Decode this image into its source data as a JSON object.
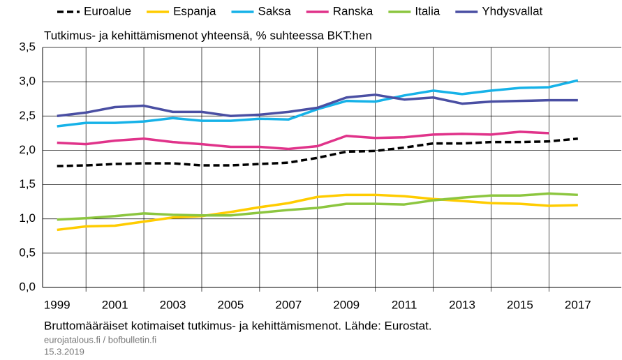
{
  "chart_data": {
    "type": "line",
    "subtitle": "Tutkimus- ja kehittämismenot yhteensä, % suhteessa BKT:hen",
    "note": "Bruttomääräiset kotimaiset tutkimus- ja kehittämismenot. Lähde: Eurostat.",
    "source": "eurojatalous.fi / bofbulletin.fi",
    "date": "15.3.2019",
    "x": [
      1999,
      2000,
      2001,
      2002,
      2003,
      2004,
      2005,
      2006,
      2007,
      2008,
      2009,
      2010,
      2011,
      2012,
      2013,
      2014,
      2015,
      2016,
      2017
    ],
    "xlim": [
      1998.5,
      2018.5
    ],
    "xticks": [
      1999,
      2001,
      2003,
      2005,
      2007,
      2009,
      2011,
      2013,
      2015,
      2017
    ],
    "ylim": [
      0,
      3.5
    ],
    "yticks": [
      {
        "value": 0,
        "label": "0,0"
      },
      {
        "value": 0.5,
        "label": "0,5"
      },
      {
        "value": 1,
        "label": "1,0"
      },
      {
        "value": 1.5,
        "label": "1,5"
      },
      {
        "value": 2,
        "label": "2,0"
      },
      {
        "value": 2.5,
        "label": "2,5"
      },
      {
        "value": 3,
        "label": "3,0"
      },
      {
        "value": 3.5,
        "label": "3,5"
      }
    ],
    "grid": true,
    "series": [
      {
        "name": "Euroalue",
        "color": "#000000",
        "dashed": true,
        "values": [
          1.77,
          1.78,
          1.8,
          1.81,
          1.81,
          1.78,
          1.78,
          1.8,
          1.82,
          1.89,
          1.98,
          1.99,
          2.04,
          2.1,
          2.1,
          2.12,
          2.12,
          2.13,
          2.17
        ]
      },
      {
        "name": "Espanja",
        "color": "#ffcc00",
        "values": [
          0.84,
          0.89,
          0.9,
          0.96,
          1.02,
          1.04,
          1.1,
          1.17,
          1.23,
          1.32,
          1.35,
          1.35,
          1.33,
          1.29,
          1.26,
          1.23,
          1.22,
          1.19,
          1.2
        ]
      },
      {
        "name": "Saksa",
        "color": "#16b2e8",
        "values": [
          2.35,
          2.4,
          2.4,
          2.42,
          2.47,
          2.43,
          2.43,
          2.46,
          2.45,
          2.6,
          2.72,
          2.71,
          2.8,
          2.87,
          2.82,
          2.87,
          2.91,
          2.92,
          3.02
        ]
      },
      {
        "name": "Ranska",
        "color": "#e0338a",
        "values": [
          2.11,
          2.09,
          2.14,
          2.17,
          2.12,
          2.09,
          2.05,
          2.05,
          2.02,
          2.06,
          2.21,
          2.18,
          2.19,
          2.23,
          2.24,
          2.23,
          2.27,
          2.25,
          null
        ]
      },
      {
        "name": "Italia",
        "color": "#8cc63f",
        "values": [
          0.99,
          1.01,
          1.04,
          1.08,
          1.06,
          1.05,
          1.05,
          1.09,
          1.13,
          1.16,
          1.22,
          1.22,
          1.21,
          1.27,
          1.31,
          1.34,
          1.34,
          1.37,
          1.35
        ]
      },
      {
        "name": "Yhdysvallat",
        "color": "#4a4fa3",
        "values": [
          2.5,
          2.55,
          2.63,
          2.65,
          2.56,
          2.56,
          2.5,
          2.52,
          2.56,
          2.62,
          2.77,
          2.81,
          2.74,
          2.77,
          2.68,
          2.71,
          2.72,
          2.73,
          2.73
        ]
      }
    ]
  }
}
